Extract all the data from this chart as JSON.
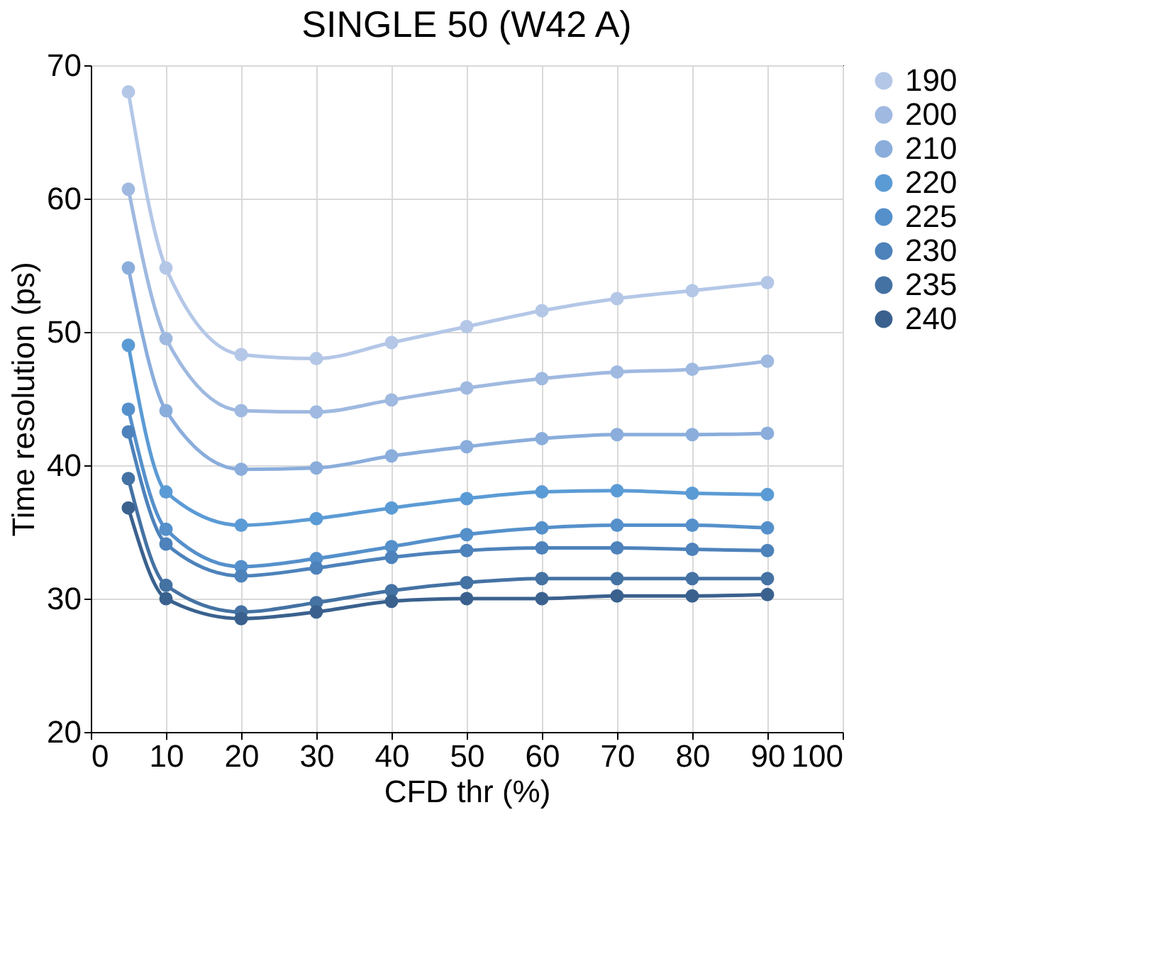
{
  "chart_data": {
    "type": "line",
    "title": "SINGLE 50 (W42 A)",
    "xlabel": "CFD thr (%)",
    "ylabel": "Time resolution (ps)",
    "x": [
      5,
      10,
      20,
      30,
      40,
      50,
      60,
      70,
      80,
      90
    ],
    "xlim": [
      0,
      100
    ],
    "xticks": [
      0,
      10,
      20,
      30,
      40,
      50,
      60,
      70,
      80,
      90,
      100
    ],
    "ylim": [
      20,
      70
    ],
    "yticks": [
      20,
      30,
      40,
      50,
      60,
      70
    ],
    "grid": true,
    "legend": "right",
    "marker": "circle",
    "line_style": "solid",
    "series": [
      {
        "name": "190",
        "color": "#b4c7e7",
        "values": [
          68,
          54.8,
          48.3,
          48.0,
          49.2,
          50.4,
          51.6,
          52.5,
          53.1,
          53.7
        ]
      },
      {
        "name": "200",
        "color": "#9fb9e0",
        "values": [
          60.7,
          49.5,
          44.1,
          44.0,
          44.9,
          45.8,
          46.5,
          47.0,
          47.2,
          47.8
        ]
      },
      {
        "name": "210",
        "color": "#8aaddc",
        "values": [
          54.8,
          44.1,
          39.7,
          39.8,
          40.7,
          41.4,
          42.0,
          42.3,
          42.3,
          42.4
        ]
      },
      {
        "name": "220",
        "color": "#5b9bd5",
        "values": [
          49.0,
          38.0,
          35.5,
          36.0,
          36.8,
          37.5,
          38.0,
          38.1,
          37.9,
          37.8
        ]
      },
      {
        "name": "225",
        "color": "#5590cb",
        "values": [
          44.2,
          35.2,
          32.4,
          33.0,
          33.9,
          34.8,
          35.3,
          35.5,
          35.5,
          35.3
        ]
      },
      {
        "name": "230",
        "color": "#4d82bb",
        "values": [
          42.5,
          34.1,
          31.7,
          32.3,
          33.1,
          33.6,
          33.8,
          33.8,
          33.7,
          33.6
        ]
      },
      {
        "name": "235",
        "color": "#4472a3",
        "values": [
          39.0,
          31.0,
          29.0,
          29.7,
          30.6,
          31.2,
          31.5,
          31.5,
          31.5,
          31.5
        ]
      },
      {
        "name": "240",
        "color": "#3a618e",
        "values": [
          36.8,
          30.0,
          28.5,
          29.0,
          29.8,
          30.0,
          30.0,
          30.2,
          30.2,
          30.3
        ]
      }
    ]
  }
}
